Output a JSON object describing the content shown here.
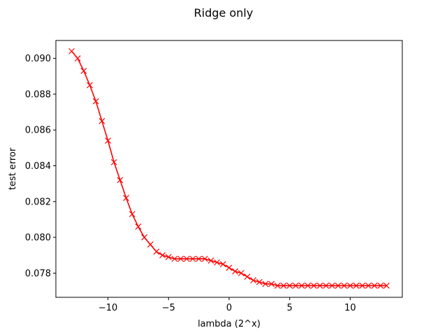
{
  "chart_data": {
    "type": "line",
    "title": "Ridge only",
    "xlabel": "lambda (2^x)",
    "ylabel": "test error",
    "xlim": [
      -14.3,
      14.3
    ],
    "ylim": [
      0.07665,
      0.091
    ],
    "x_ticks": [
      -10,
      -5,
      0,
      5,
      10
    ],
    "x_tick_labels": [
      "−10",
      "−5",
      "0",
      "5",
      "10"
    ],
    "y_ticks": [
      0.078,
      0.08,
      0.082,
      0.084,
      0.086,
      0.088,
      0.09
    ],
    "y_tick_labels": [
      "0.078",
      "0.080",
      "0.082",
      "0.084",
      "0.086",
      "0.088",
      "0.090"
    ],
    "grid": false,
    "series": [
      {
        "color": "#ff0000",
        "marker": "x",
        "x": [
          -13,
          -12.5,
          -12,
          -11.5,
          -11,
          -10.5,
          -10,
          -9.5,
          -9,
          -8.5,
          -8,
          -7.5,
          -7,
          -6.5,
          -6,
          -5.5,
          -5,
          -4.5,
          -4,
          -3.5,
          -3,
          -2.5,
          -2,
          -1.5,
          -1,
          -0.5,
          0,
          0.5,
          1,
          1.5,
          2,
          2.5,
          3,
          3.5,
          4,
          4.5,
          5,
          5.5,
          6,
          6.5,
          7,
          7.5,
          8,
          8.5,
          9,
          9.5,
          10,
          10.5,
          11,
          11.5,
          12,
          12.5,
          13
        ],
        "values": [
          0.0904,
          0.09,
          0.0893,
          0.0885,
          0.0876,
          0.0865,
          0.0854,
          0.0842,
          0.0832,
          0.0822,
          0.0813,
          0.0806,
          0.08,
          0.0796,
          0.0792,
          0.079,
          0.0789,
          0.0788,
          0.0788,
          0.0788,
          0.0788,
          0.0788,
          0.0788,
          0.0787,
          0.0786,
          0.0785,
          0.0783,
          0.0781,
          0.078,
          0.0778,
          0.0776,
          0.0775,
          0.0774,
          0.0774,
          0.0773,
          0.0773,
          0.0773,
          0.0773,
          0.0773,
          0.0773,
          0.0773,
          0.0773,
          0.0773,
          0.0773,
          0.0773,
          0.0773,
          0.0773,
          0.0773,
          0.0773,
          0.0773,
          0.0773,
          0.0773,
          0.0773
        ]
      }
    ]
  }
}
